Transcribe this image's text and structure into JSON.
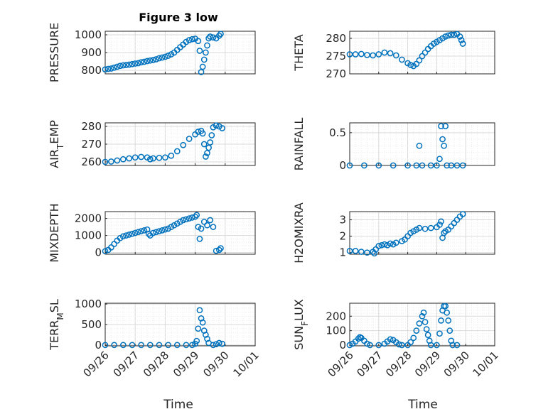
{
  "figure": {
    "title": "Figure 3 low",
    "xlabel": "Time",
    "x_ticks": [
      "09/26",
      "09/27",
      "09/28",
      "09/29",
      "09/30",
      "10/01"
    ],
    "marker_color": "#0072BD"
  },
  "chart_data": [
    {
      "type": "scatter",
      "ylabel": "PRESSURE",
      "ylim": [
        780,
        1020
      ],
      "yticks": [
        800,
        900,
        1000
      ],
      "xlim": [
        0,
        5
      ],
      "grid": true,
      "points": [
        [
          0,
          805
        ],
        [
          0.1,
          808
        ],
        [
          0.2,
          810
        ],
        [
          0.3,
          815
        ],
        [
          0.4,
          820
        ],
        [
          0.5,
          825
        ],
        [
          0.6,
          828
        ],
        [
          0.7,
          830
        ],
        [
          0.8,
          832
        ],
        [
          0.9,
          835
        ],
        [
          1.0,
          838
        ],
        [
          1.1,
          840
        ],
        [
          1.2,
          845
        ],
        [
          1.3,
          848
        ],
        [
          1.4,
          852
        ],
        [
          1.5,
          855
        ],
        [
          1.6,
          858
        ],
        [
          1.7,
          862
        ],
        [
          1.8,
          868
        ],
        [
          1.9,
          872
        ],
        [
          2.0,
          876
        ],
        [
          2.1,
          882
        ],
        [
          2.2,
          890
        ],
        [
          2.3,
          900
        ],
        [
          2.4,
          915
        ],
        [
          2.5,
          930
        ],
        [
          2.6,
          945
        ],
        [
          2.7,
          960
        ],
        [
          2.8,
          970
        ],
        [
          2.9,
          975
        ],
        [
          3.0,
          978
        ],
        [
          3.1,
          965
        ],
        [
          3.15,
          910
        ],
        [
          3.2,
          790
        ],
        [
          3.25,
          820
        ],
        [
          3.3,
          860
        ],
        [
          3.35,
          900
        ],
        [
          3.4,
          940
        ],
        [
          3.45,
          980
        ],
        [
          3.5,
          990
        ],
        [
          3.6,
          985
        ],
        [
          3.7,
          980
        ],
        [
          3.8,
          995
        ],
        [
          3.85,
          1005
        ]
      ]
    },
    {
      "type": "scatter",
      "ylabel": "THETA",
      "ylim": [
        270,
        282
      ],
      "yticks": [
        270,
        275,
        280
      ],
      "xlim": [
        0,
        5
      ],
      "grid": true,
      "points": [
        [
          0,
          275.5
        ],
        [
          0.2,
          275.5
        ],
        [
          0.4,
          275.6
        ],
        [
          0.6,
          275.3
        ],
        [
          0.8,
          275.2
        ],
        [
          1.0,
          275.5
        ],
        [
          1.2,
          276.0
        ],
        [
          1.4,
          275.8
        ],
        [
          1.6,
          275.2
        ],
        [
          1.8,
          274.0
        ],
        [
          2.0,
          273.0
        ],
        [
          2.1,
          272.5
        ],
        [
          2.2,
          272.2
        ],
        [
          2.3,
          272.8
        ],
        [
          2.4,
          273.8
        ],
        [
          2.5,
          275.0
        ],
        [
          2.6,
          276.0
        ],
        [
          2.7,
          277.0
        ],
        [
          2.8,
          277.8
        ],
        [
          2.9,
          278.5
        ],
        [
          3.0,
          279.0
        ],
        [
          3.1,
          279.5
        ],
        [
          3.2,
          280.0
        ],
        [
          3.3,
          280.5
        ],
        [
          3.4,
          280.8
        ],
        [
          3.5,
          281.0
        ],
        [
          3.6,
          281.0
        ],
        [
          3.7,
          281.2
        ],
        [
          3.8,
          280.5
        ],
        [
          3.85,
          279.5
        ],
        [
          3.9,
          278.5
        ]
      ]
    },
    {
      "type": "scatter",
      "ylabel": "AIR_TEMP",
      "ylim": [
        258,
        282
      ],
      "yticks": [
        260,
        270,
        280
      ],
      "xlim": [
        0,
        5
      ],
      "grid": true,
      "points": [
        [
          0,
          260
        ],
        [
          0.2,
          260.2
        ],
        [
          0.4,
          260.8
        ],
        [
          0.6,
          261.5
        ],
        [
          0.8,
          262
        ],
        [
          1.0,
          262.5
        ],
        [
          1.2,
          262.8
        ],
        [
          1.4,
          262.5
        ],
        [
          1.5,
          261.5
        ],
        [
          1.6,
          262
        ],
        [
          1.8,
          262.3
        ],
        [
          2.0,
          262.5
        ],
        [
          2.2,
          263.5
        ],
        [
          2.4,
          266
        ],
        [
          2.6,
          269.5
        ],
        [
          2.8,
          273
        ],
        [
          3.0,
          275.5
        ],
        [
          3.1,
          277
        ],
        [
          3.2,
          277.5
        ],
        [
          3.25,
          276
        ],
        [
          3.3,
          270
        ],
        [
          3.35,
          263
        ],
        [
          3.4,
          265
        ],
        [
          3.45,
          268
        ],
        [
          3.5,
          271
        ],
        [
          3.55,
          275
        ],
        [
          3.6,
          279.5
        ],
        [
          3.7,
          280.5
        ],
        [
          3.8,
          280
        ],
        [
          3.9,
          279
        ]
      ]
    },
    {
      "type": "scatter",
      "ylabel": "RAINFALL",
      "ylim": [
        0,
        0.65
      ],
      "yticks": [
        0,
        0.5
      ],
      "xlim": [
        0,
        5
      ],
      "grid": true,
      "points": [
        [
          0,
          0
        ],
        [
          0.5,
          0
        ],
        [
          1.0,
          0
        ],
        [
          1.5,
          0
        ],
        [
          2.0,
          0
        ],
        [
          2.3,
          0
        ],
        [
          2.4,
          0.3
        ],
        [
          2.5,
          0
        ],
        [
          2.8,
          0
        ],
        [
          3.0,
          0
        ],
        [
          3.1,
          0.1
        ],
        [
          3.15,
          0.6
        ],
        [
          3.2,
          0.4
        ],
        [
          3.25,
          0.3
        ],
        [
          3.3,
          0.6
        ],
        [
          3.35,
          0
        ],
        [
          3.5,
          0
        ],
        [
          3.7,
          0
        ],
        [
          3.9,
          0
        ]
      ]
    },
    {
      "type": "scatter",
      "ylabel": "MIXDEPTH",
      "ylim": [
        -100,
        2400
      ],
      "yticks": [
        0,
        1000,
        2000
      ],
      "xlim": [
        0,
        5
      ],
      "grid": true,
      "points": [
        [
          0,
          80
        ],
        [
          0.1,
          150
        ],
        [
          0.2,
          300
        ],
        [
          0.3,
          500
        ],
        [
          0.4,
          700
        ],
        [
          0.5,
          850
        ],
        [
          0.6,
          950
        ],
        [
          0.7,
          1000
        ],
        [
          0.8,
          1050
        ],
        [
          0.9,
          1100
        ],
        [
          1.0,
          1150
        ],
        [
          1.1,
          1200
        ],
        [
          1.2,
          1250
        ],
        [
          1.3,
          1300
        ],
        [
          1.4,
          1350
        ],
        [
          1.45,
          1100
        ],
        [
          1.5,
          1000
        ],
        [
          1.6,
          1150
        ],
        [
          1.7,
          1200
        ],
        [
          1.8,
          1250
        ],
        [
          1.9,
          1300
        ],
        [
          2.0,
          1350
        ],
        [
          2.1,
          1400
        ],
        [
          2.2,
          1500
        ],
        [
          2.3,
          1600
        ],
        [
          2.4,
          1700
        ],
        [
          2.5,
          1800
        ],
        [
          2.6,
          1900
        ],
        [
          2.7,
          1950
        ],
        [
          2.8,
          2000
        ],
        [
          2.9,
          2050
        ],
        [
          3.0,
          2100
        ],
        [
          3.05,
          2200
        ],
        [
          3.1,
          1500
        ],
        [
          3.15,
          800
        ],
        [
          3.2,
          1400
        ],
        [
          3.3,
          1800
        ],
        [
          3.4,
          1600
        ],
        [
          3.5,
          1900
        ],
        [
          3.6,
          1500
        ],
        [
          3.7,
          100
        ],
        [
          3.8,
          150
        ],
        [
          3.85,
          250
        ]
      ]
    },
    {
      "type": "scatter",
      "ylabel": "H2OMIXRA",
      "ylim": [
        0.9,
        3.5
      ],
      "yticks": [
        1,
        2,
        3
      ],
      "xlim": [
        0,
        5
      ],
      "grid": true,
      "points": [
        [
          0,
          1.1
        ],
        [
          0.2,
          1.1
        ],
        [
          0.4,
          1.05
        ],
        [
          0.6,
          1.0
        ],
        [
          0.8,
          1.05
        ],
        [
          0.85,
          0.95
        ],
        [
          0.9,
          1.2
        ],
        [
          1.0,
          1.4
        ],
        [
          1.1,
          1.45
        ],
        [
          1.2,
          1.5
        ],
        [
          1.3,
          1.45
        ],
        [
          1.4,
          1.55
        ],
        [
          1.5,
          1.5
        ],
        [
          1.6,
          1.6
        ],
        [
          1.8,
          1.7
        ],
        [
          1.9,
          1.8
        ],
        [
          2.0,
          2.0
        ],
        [
          2.1,
          2.2
        ],
        [
          2.2,
          2.3
        ],
        [
          2.3,
          2.4
        ],
        [
          2.4,
          2.5
        ],
        [
          2.6,
          2.45
        ],
        [
          2.8,
          2.5
        ],
        [
          3.0,
          2.55
        ],
        [
          3.1,
          2.7
        ],
        [
          3.15,
          2.9
        ],
        [
          3.2,
          1.9
        ],
        [
          3.25,
          2.2
        ],
        [
          3.3,
          2.3
        ],
        [
          3.4,
          2.4
        ],
        [
          3.5,
          2.6
        ],
        [
          3.6,
          2.8
        ],
        [
          3.7,
          3.0
        ],
        [
          3.8,
          3.2
        ],
        [
          3.9,
          3.35
        ]
      ]
    },
    {
      "type": "scatter",
      "ylabel": "TERR_MSL",
      "ylim": [
        -20,
        1020
      ],
      "yticks": [
        0,
        500,
        1000
      ],
      "xlim": [
        0,
        5
      ],
      "grid": true,
      "points": [
        [
          0,
          0
        ],
        [
          0.3,
          0
        ],
        [
          0.6,
          0
        ],
        [
          0.9,
          0
        ],
        [
          1.2,
          0
        ],
        [
          1.5,
          0
        ],
        [
          1.8,
          0
        ],
        [
          2.1,
          0
        ],
        [
          2.4,
          0
        ],
        [
          2.7,
          0
        ],
        [
          2.9,
          0
        ],
        [
          3.0,
          30
        ],
        [
          3.05,
          100
        ],
        [
          3.1,
          400
        ],
        [
          3.15,
          850
        ],
        [
          3.2,
          650
        ],
        [
          3.25,
          550
        ],
        [
          3.3,
          350
        ],
        [
          3.35,
          250
        ],
        [
          3.4,
          150
        ],
        [
          3.45,
          50
        ],
        [
          3.6,
          0
        ],
        [
          3.7,
          20
        ],
        [
          3.8,
          50
        ],
        [
          3.9,
          30
        ]
      ]
    },
    {
      "type": "scatter",
      "ylabel": "SUN_FLUX",
      "ylim": [
        -5,
        290
      ],
      "yticks": [
        0,
        100,
        200
      ],
      "xlim": [
        0,
        5
      ],
      "grid": true,
      "points": [
        [
          0,
          0
        ],
        [
          0.1,
          10
        ],
        [
          0.2,
          25
        ],
        [
          0.3,
          45
        ],
        [
          0.35,
          55
        ],
        [
          0.4,
          50
        ],
        [
          0.5,
          30
        ],
        [
          0.6,
          10
        ],
        [
          0.7,
          0
        ],
        [
          1.0,
          0
        ],
        [
          1.2,
          10
        ],
        [
          1.3,
          25
        ],
        [
          1.4,
          40
        ],
        [
          1.5,
          35
        ],
        [
          1.6,
          20
        ],
        [
          1.7,
          5
        ],
        [
          1.8,
          0
        ],
        [
          2.0,
          0
        ],
        [
          2.1,
          20
        ],
        [
          2.2,
          50
        ],
        [
          2.3,
          100
        ],
        [
          2.4,
          150
        ],
        [
          2.5,
          200
        ],
        [
          2.55,
          225
        ],
        [
          2.6,
          160
        ],
        [
          2.65,
          110
        ],
        [
          2.7,
          70
        ],
        [
          2.75,
          30
        ],
        [
          2.8,
          0
        ],
        [
          3.0,
          0
        ],
        [
          3.1,
          80
        ],
        [
          3.15,
          170
        ],
        [
          3.2,
          240
        ],
        [
          3.25,
          270
        ],
        [
          3.3,
          270
        ],
        [
          3.35,
          225
        ],
        [
          3.4,
          170
        ],
        [
          3.45,
          100
        ],
        [
          3.5,
          30
        ],
        [
          3.55,
          0
        ],
        [
          3.7,
          0
        ]
      ]
    }
  ]
}
